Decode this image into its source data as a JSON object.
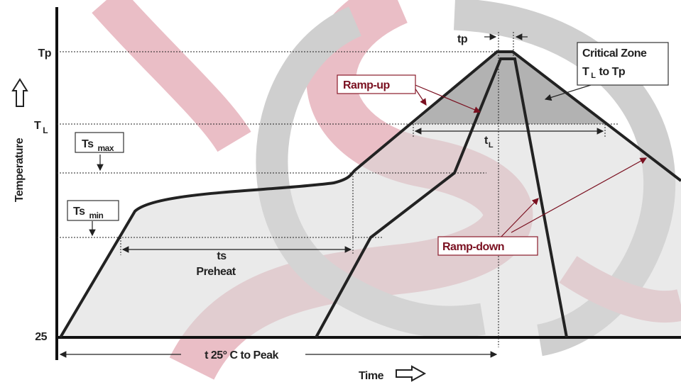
{
  "axes": {
    "y_label": "Temperature",
    "x_label": "Time",
    "levels": {
      "tp": "Tp",
      "tl": {
        "main": "T",
        "sub": "L"
      },
      "base": "25"
    }
  },
  "labels": {
    "ts_max": {
      "main": "Ts",
      "sub": "max"
    },
    "ts_min": {
      "main": "Ts",
      "sub": "min"
    },
    "tp": "tp",
    "critical_zone": {
      "line1": "Critical Zone",
      "line2_main": "T",
      "line2_sub": "L",
      "line2_rest": "to Tp"
    },
    "ramp_up": "Ramp-up",
    "ramp_down": "Ramp-down",
    "tl": {
      "main": "t",
      "sub": "L"
    },
    "ts": "ts",
    "preheat": "Preheat",
    "t25": "t 25° C to Peak"
  }
}
